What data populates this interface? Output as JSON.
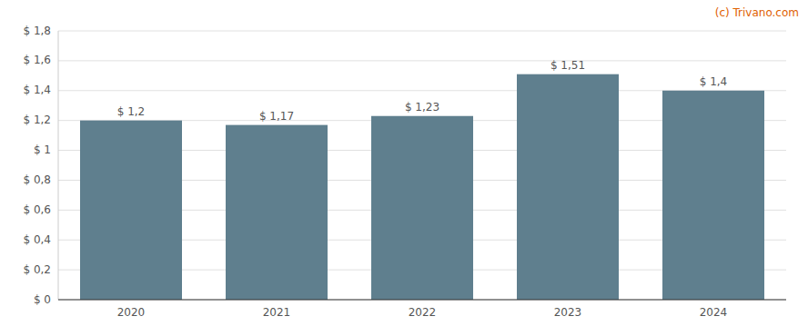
{
  "chart_data": {
    "type": "bar",
    "categories": [
      "2020",
      "2021",
      "2022",
      "2023",
      "2024"
    ],
    "values": [
      1.2,
      1.17,
      1.23,
      1.51,
      1.4
    ],
    "value_labels": [
      "$ 1,2",
      "$ 1,17",
      "$ 1,23",
      "$ 1,51",
      "$ 1,4"
    ],
    "data_labels": true,
    "color": "#5f7f8e",
    "ylim": [
      0,
      1.8
    ],
    "yticks": [
      {
        "value": 0,
        "label": "$ 0"
      },
      {
        "value": 0.2,
        "label": "$ 0,2"
      },
      {
        "value": 0.4,
        "label": "$ 0,4"
      },
      {
        "value": 0.6,
        "label": "$ 0,6"
      },
      {
        "value": 0.8,
        "label": "$ 0,8"
      },
      {
        "value": 1.0,
        "label": "$ 1"
      },
      {
        "value": 1.2,
        "label": "$ 1,2"
      },
      {
        "value": 1.4,
        "label": "$ 1,4"
      },
      {
        "value": 1.6,
        "label": "$ 1,6"
      },
      {
        "value": 1.8,
        "label": "$ 1,8"
      }
    ],
    "grid": true,
    "annotations": [
      {
        "text": "(c) Trivano.com",
        "color": "#e06000"
      }
    ]
  }
}
